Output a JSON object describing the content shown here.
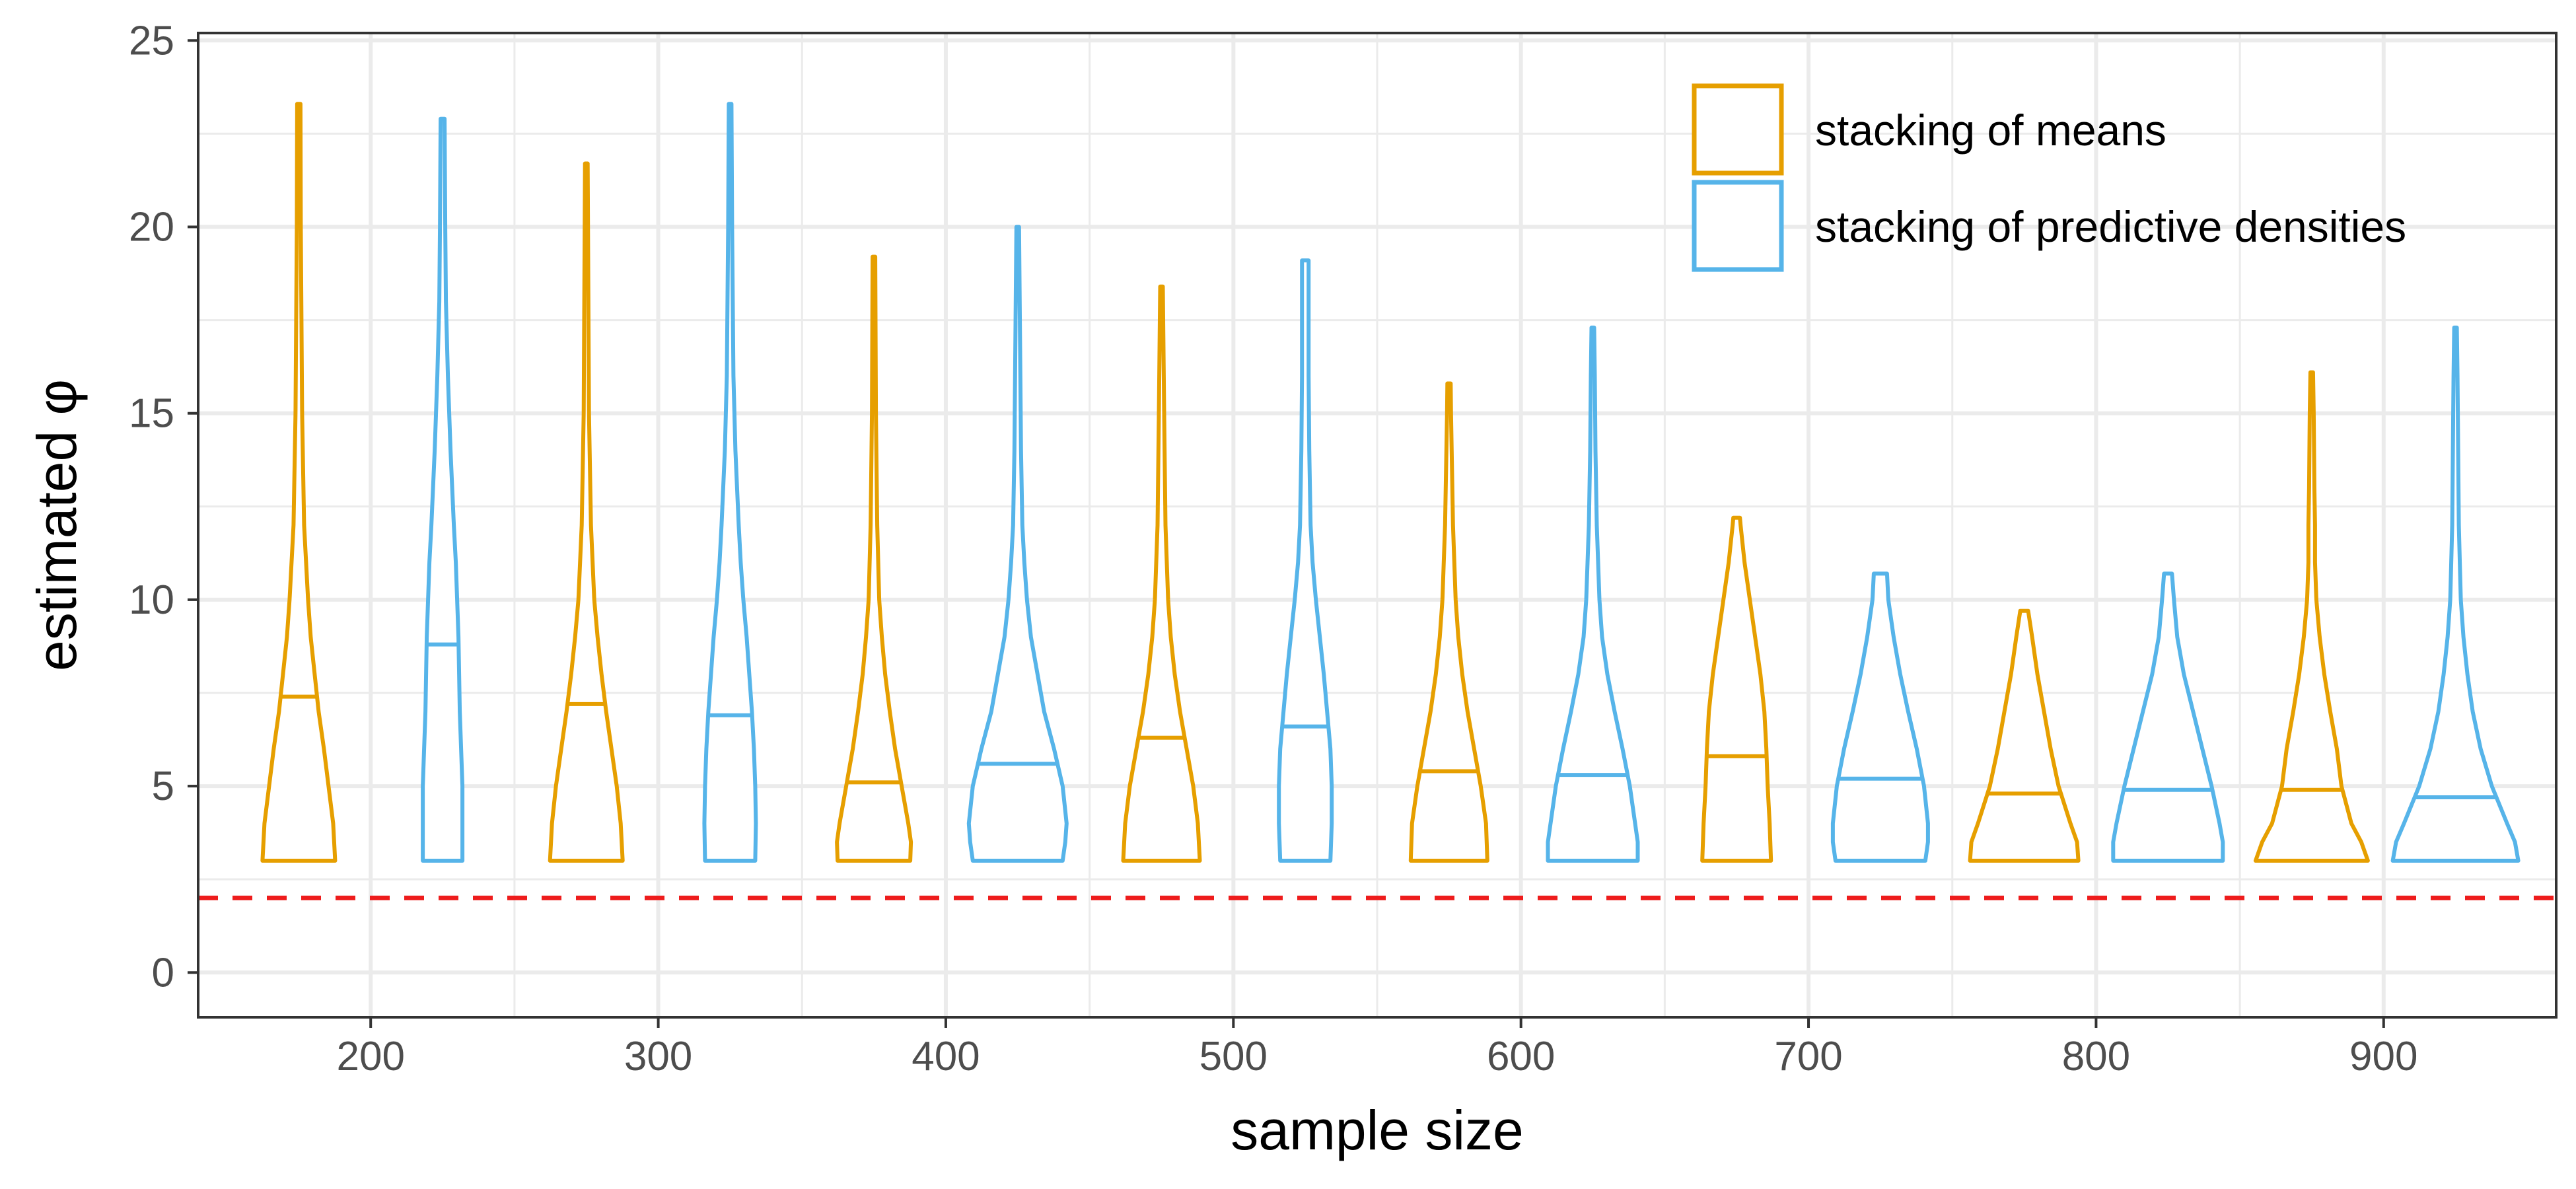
{
  "chart_data": {
    "type": "violin",
    "title": "",
    "xlabel": "sample size",
    "ylabel": "estimated φ",
    "xlim": [
      140,
      960
    ],
    "ylim": [
      -1.2,
      25.2
    ],
    "x_ticks": [
      200,
      300,
      400,
      500,
      600,
      700,
      800,
      900
    ],
    "y_ticks": [
      0,
      5,
      10,
      15,
      20,
      25
    ],
    "x_minor_ticks": [
      250,
      350,
      450,
      550,
      650,
      750,
      850
    ],
    "y_minor_ticks": [
      2.5,
      7.5,
      12.5,
      17.5,
      22.5
    ],
    "grid": true,
    "legend_position": "top-right",
    "reference_line": {
      "y": 2,
      "style": "dashed",
      "color": "#ee1c1c"
    },
    "series": [
      {
        "name": "stacking of means",
        "color": "#e69f00",
        "offset": -25,
        "violins": [
          {
            "x": 200,
            "min": 3,
            "max": 23.3,
            "median": 7.4,
            "profile": [
              [
                3,
                0.55
              ],
              [
                4,
                0.52
              ],
              [
                5,
                0.45
              ],
              [
                6,
                0.38
              ],
              [
                7,
                0.3
              ],
              [
                8,
                0.24
              ],
              [
                9,
                0.18
              ],
              [
                10,
                0.14
              ],
              [
                12,
                0.08
              ],
              [
                15,
                0.05
              ],
              [
                20,
                0.03
              ],
              [
                23.3,
                0.025
              ]
            ]
          },
          {
            "x": 300,
            "min": 3,
            "max": 21.7,
            "median": 7.2,
            "profile": [
              [
                3,
                0.55
              ],
              [
                4,
                0.52
              ],
              [
                5,
                0.46
              ],
              [
                6,
                0.38
              ],
              [
                7,
                0.3
              ],
              [
                8,
                0.23
              ],
              [
                9,
                0.17
              ],
              [
                10,
                0.12
              ],
              [
                12,
                0.07
              ],
              [
                15,
                0.04
              ],
              [
                20,
                0.025
              ],
              [
                21.7,
                0.02
              ]
            ]
          },
          {
            "x": 400,
            "min": 3,
            "max": 19.2,
            "median": 5.1,
            "profile": [
              [
                3,
                0.55
              ],
              [
                3.5,
                0.56
              ],
              [
                4,
                0.52
              ],
              [
                5,
                0.42
              ],
              [
                6,
                0.32
              ],
              [
                7,
                0.24
              ],
              [
                8,
                0.17
              ],
              [
                9,
                0.12
              ],
              [
                10,
                0.08
              ],
              [
                12,
                0.05
              ],
              [
                15,
                0.03
              ],
              [
                19.2,
                0.02
              ]
            ]
          },
          {
            "x": 500,
            "min": 3,
            "max": 18.4,
            "median": 6.3,
            "profile": [
              [
                3,
                0.58
              ],
              [
                4,
                0.55
              ],
              [
                5,
                0.48
              ],
              [
                6,
                0.38
              ],
              [
                7,
                0.28
              ],
              [
                8,
                0.2
              ],
              [
                9,
                0.14
              ],
              [
                10,
                0.1
              ],
              [
                12,
                0.06
              ],
              [
                15,
                0.04
              ],
              [
                18.4,
                0.02
              ]
            ]
          },
          {
            "x": 600,
            "min": 3,
            "max": 15.8,
            "median": 5.4,
            "profile": [
              [
                3,
                0.58
              ],
              [
                4,
                0.56
              ],
              [
                5,
                0.48
              ],
              [
                6,
                0.38
              ],
              [
                7,
                0.28
              ],
              [
                8,
                0.2
              ],
              [
                9,
                0.14
              ],
              [
                10,
                0.1
              ],
              [
                12,
                0.06
              ],
              [
                15,
                0.03
              ],
              [
                15.8,
                0.025
              ]
            ]
          },
          {
            "x": 700,
            "min": 3,
            "max": 12.2,
            "median": 5.8,
            "profile": [
              [
                3,
                0.52
              ],
              [
                4,
                0.5
              ],
              [
                5,
                0.47
              ],
              [
                6,
                0.45
              ],
              [
                7,
                0.42
              ],
              [
                8,
                0.36
              ],
              [
                9,
                0.28
              ],
              [
                10,
                0.2
              ],
              [
                11,
                0.12
              ],
              [
                12,
                0.06
              ],
              [
                12.2,
                0.05
              ]
            ]
          },
          {
            "x": 800,
            "min": 3,
            "max": 9.7,
            "median": 4.8,
            "profile": [
              [
                3,
                0.82
              ],
              [
                3.5,
                0.8
              ],
              [
                4,
                0.7
              ],
              [
                5,
                0.52
              ],
              [
                6,
                0.4
              ],
              [
                7,
                0.3
              ],
              [
                8,
                0.2
              ],
              [
                9,
                0.12
              ],
              [
                9.7,
                0.06
              ]
            ]
          },
          {
            "x": 900,
            "min": 3,
            "max": 16.1,
            "median": 4.9,
            "profile": [
              [
                3,
                0.85
              ],
              [
                3.5,
                0.75
              ],
              [
                4,
                0.6
              ],
              [
                5,
                0.45
              ],
              [
                6,
                0.38
              ],
              [
                7,
                0.28
              ],
              [
                8,
                0.19
              ],
              [
                9,
                0.12
              ],
              [
                10,
                0.07
              ],
              [
                11,
                0.05
              ],
              [
                12,
                0.05
              ],
              [
                13,
                0.04
              ],
              [
                15,
                0.03
              ],
              [
                16.1,
                0.02
              ]
            ]
          }
        ]
      },
      {
        "name": "stacking of predictive densities",
        "color": "#56b4e9",
        "offset": 25,
        "violins": [
          {
            "x": 200,
            "min": 3,
            "max": 22.9,
            "median": 8.8,
            "profile": [
              [
                3,
                0.3
              ],
              [
                4,
                0.3
              ],
              [
                5,
                0.3
              ],
              [
                6,
                0.28
              ],
              [
                7,
                0.26
              ],
              [
                8,
                0.25
              ],
              [
                9,
                0.24
              ],
              [
                10,
                0.22
              ],
              [
                11,
                0.2
              ],
              [
                12,
                0.17
              ],
              [
                14,
                0.12
              ],
              [
                16,
                0.08
              ],
              [
                18,
                0.05
              ],
              [
                20,
                0.04
              ],
              [
                22.9,
                0.03
              ]
            ]
          },
          {
            "x": 300,
            "min": 3,
            "max": 23.3,
            "median": 6.9,
            "profile": [
              [
                3,
                0.38
              ],
              [
                4,
                0.39
              ],
              [
                5,
                0.38
              ],
              [
                6,
                0.36
              ],
              [
                7,
                0.33
              ],
              [
                8,
                0.29
              ],
              [
                9,
                0.25
              ],
              [
                10,
                0.2
              ],
              [
                11,
                0.16
              ],
              [
                12,
                0.13
              ],
              [
                14,
                0.08
              ],
              [
                16,
                0.05
              ],
              [
                18,
                0.04
              ],
              [
                20,
                0.03
              ],
              [
                23.3,
                0.02
              ]
            ]
          },
          {
            "x": 400,
            "min": 3,
            "max": 20.0,
            "median": 5.6,
            "profile": [
              [
                3,
                0.68
              ],
              [
                3.5,
                0.72
              ],
              [
                4,
                0.74
              ],
              [
                5,
                0.68
              ],
              [
                6,
                0.55
              ],
              [
                7,
                0.4
              ],
              [
                8,
                0.3
              ],
              [
                9,
                0.2
              ],
              [
                10,
                0.14
              ],
              [
                11,
                0.1
              ],
              [
                12,
                0.07
              ],
              [
                14,
                0.05
              ],
              [
                16,
                0.04
              ],
              [
                18,
                0.03
              ],
              [
                20,
                0.02
              ]
            ]
          },
          {
            "x": 500,
            "min": 3,
            "max": 19.1,
            "median": 6.6,
            "profile": [
              [
                3,
                0.38
              ],
              [
                4,
                0.4
              ],
              [
                5,
                0.4
              ],
              [
                6,
                0.38
              ],
              [
                7,
                0.33
              ],
              [
                8,
                0.28
              ],
              [
                9,
                0.22
              ],
              [
                10,
                0.16
              ],
              [
                11,
                0.11
              ],
              [
                12,
                0.08
              ],
              [
                14,
                0.06
              ],
              [
                16,
                0.05
              ],
              [
                18,
                0.05
              ],
              [
                19.1,
                0.05
              ]
            ]
          },
          {
            "x": 600,
            "min": 3,
            "max": 17.3,
            "median": 5.3,
            "profile": [
              [
                3,
                0.68
              ],
              [
                3.5,
                0.68
              ],
              [
                4,
                0.64
              ],
              [
                5,
                0.56
              ],
              [
                6,
                0.45
              ],
              [
                7,
                0.33
              ],
              [
                8,
                0.22
              ],
              [
                9,
                0.14
              ],
              [
                10,
                0.1
              ],
              [
                11,
                0.08
              ],
              [
                12,
                0.06
              ],
              [
                14,
                0.04
              ],
              [
                16,
                0.03
              ],
              [
                17.3,
                0.02
              ]
            ]
          },
          {
            "x": 700,
            "min": 3,
            "max": 10.7,
            "median": 5.2,
            "profile": [
              [
                3,
                0.68
              ],
              [
                3.5,
                0.72
              ],
              [
                4,
                0.72
              ],
              [
                5,
                0.66
              ],
              [
                6,
                0.55
              ],
              [
                7,
                0.42
              ],
              [
                8,
                0.3
              ],
              [
                9,
                0.2
              ],
              [
                10,
                0.12
              ],
              [
                10.7,
                0.1
              ]
            ]
          },
          {
            "x": 800,
            "min": 3,
            "max": 10.7,
            "median": 4.9,
            "profile": [
              [
                3,
                0.83
              ],
              [
                3.5,
                0.83
              ],
              [
                4,
                0.78
              ],
              [
                5,
                0.66
              ],
              [
                6,
                0.52
              ],
              [
                7,
                0.38
              ],
              [
                8,
                0.24
              ],
              [
                9,
                0.14
              ],
              [
                10,
                0.09
              ],
              [
                10.7,
                0.06
              ]
            ]
          },
          {
            "x": 900,
            "min": 3,
            "max": 17.3,
            "median": 4.7,
            "profile": [
              [
                3,
                0.95
              ],
              [
                3.5,
                0.9
              ],
              [
                4,
                0.78
              ],
              [
                5,
                0.55
              ],
              [
                6,
                0.38
              ],
              [
                7,
                0.26
              ],
              [
                8,
                0.18
              ],
              [
                9,
                0.12
              ],
              [
                10,
                0.08
              ],
              [
                12,
                0.05
              ],
              [
                14,
                0.04
              ],
              [
                16,
                0.03
              ],
              [
                17.3,
                0.02
              ]
            ]
          }
        ]
      }
    ]
  }
}
